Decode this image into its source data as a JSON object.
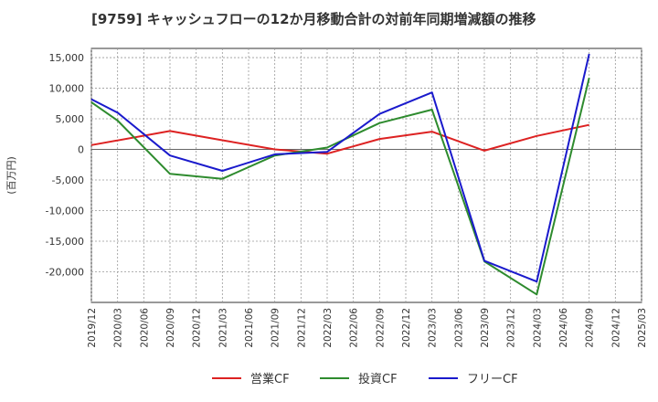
{
  "chart_data": {
    "type": "line",
    "title": "[9759]  キャッシュフローの12か月移動合計の対前年同期増減額の推移",
    "ylabel": "(百万円)",
    "xlabel": "",
    "ylim": [
      -25000,
      16500
    ],
    "grid": true,
    "legend_position": "bottom",
    "x_ticks": [
      "2019/12",
      "2020/03",
      "2020/06",
      "2020/09",
      "2020/12",
      "2021/03",
      "2021/06",
      "2021/09",
      "2021/12",
      "2022/03",
      "2022/06",
      "2022/09",
      "2022/12",
      "2023/03",
      "2023/06",
      "2023/09",
      "2023/12",
      "2024/03",
      "2024/06",
      "2024/09",
      "2024/12",
      "2025/03"
    ],
    "y_ticks": [
      15000,
      10000,
      5000,
      0,
      -5000,
      -10000,
      -15000,
      -20000
    ],
    "y_tick_labels": [
      "15,000",
      "10,000",
      "5,000",
      "0",
      "-5,000",
      "-10,000",
      "-15,000",
      "-20,000"
    ],
    "series": [
      {
        "name": "営業CF",
        "color": "#dd2222",
        "points": [
          [
            "2019/12",
            700
          ],
          [
            "2020/09",
            3000
          ],
          [
            "2021/03",
            1500
          ],
          [
            "2021/09",
            0
          ],
          [
            "2022/03",
            -700
          ],
          [
            "2022/09",
            1700
          ],
          [
            "2023/03",
            2900
          ],
          [
            "2023/09",
            -200
          ],
          [
            "2024/03",
            2200
          ],
          [
            "2024/09",
            4000
          ]
        ]
      },
      {
        "name": "投資CF",
        "color": "#2e8b2e",
        "points": [
          [
            "2019/12",
            7700
          ],
          [
            "2020/03",
            4700
          ],
          [
            "2020/09",
            -4000
          ],
          [
            "2021/03",
            -4800
          ],
          [
            "2021/09",
            -1000
          ],
          [
            "2022/03",
            300
          ],
          [
            "2022/09",
            4300
          ],
          [
            "2023/03",
            6500
          ],
          [
            "2023/09",
            -18300
          ],
          [
            "2024/03",
            -23700
          ],
          [
            "2024/09",
            11700
          ]
        ]
      },
      {
        "name": "フリーCF",
        "color": "#1a1acc",
        "points": [
          [
            "2019/12",
            8200
          ],
          [
            "2020/03",
            6000
          ],
          [
            "2020/09",
            -1000
          ],
          [
            "2021/03",
            -3500
          ],
          [
            "2021/09",
            -800
          ],
          [
            "2022/03",
            -400
          ],
          [
            "2022/09",
            5800
          ],
          [
            "2023/03",
            9300
          ],
          [
            "2023/09",
            -18200
          ],
          [
            "2024/03",
            -21600
          ],
          [
            "2024/09",
            15600
          ]
        ]
      }
    ]
  }
}
